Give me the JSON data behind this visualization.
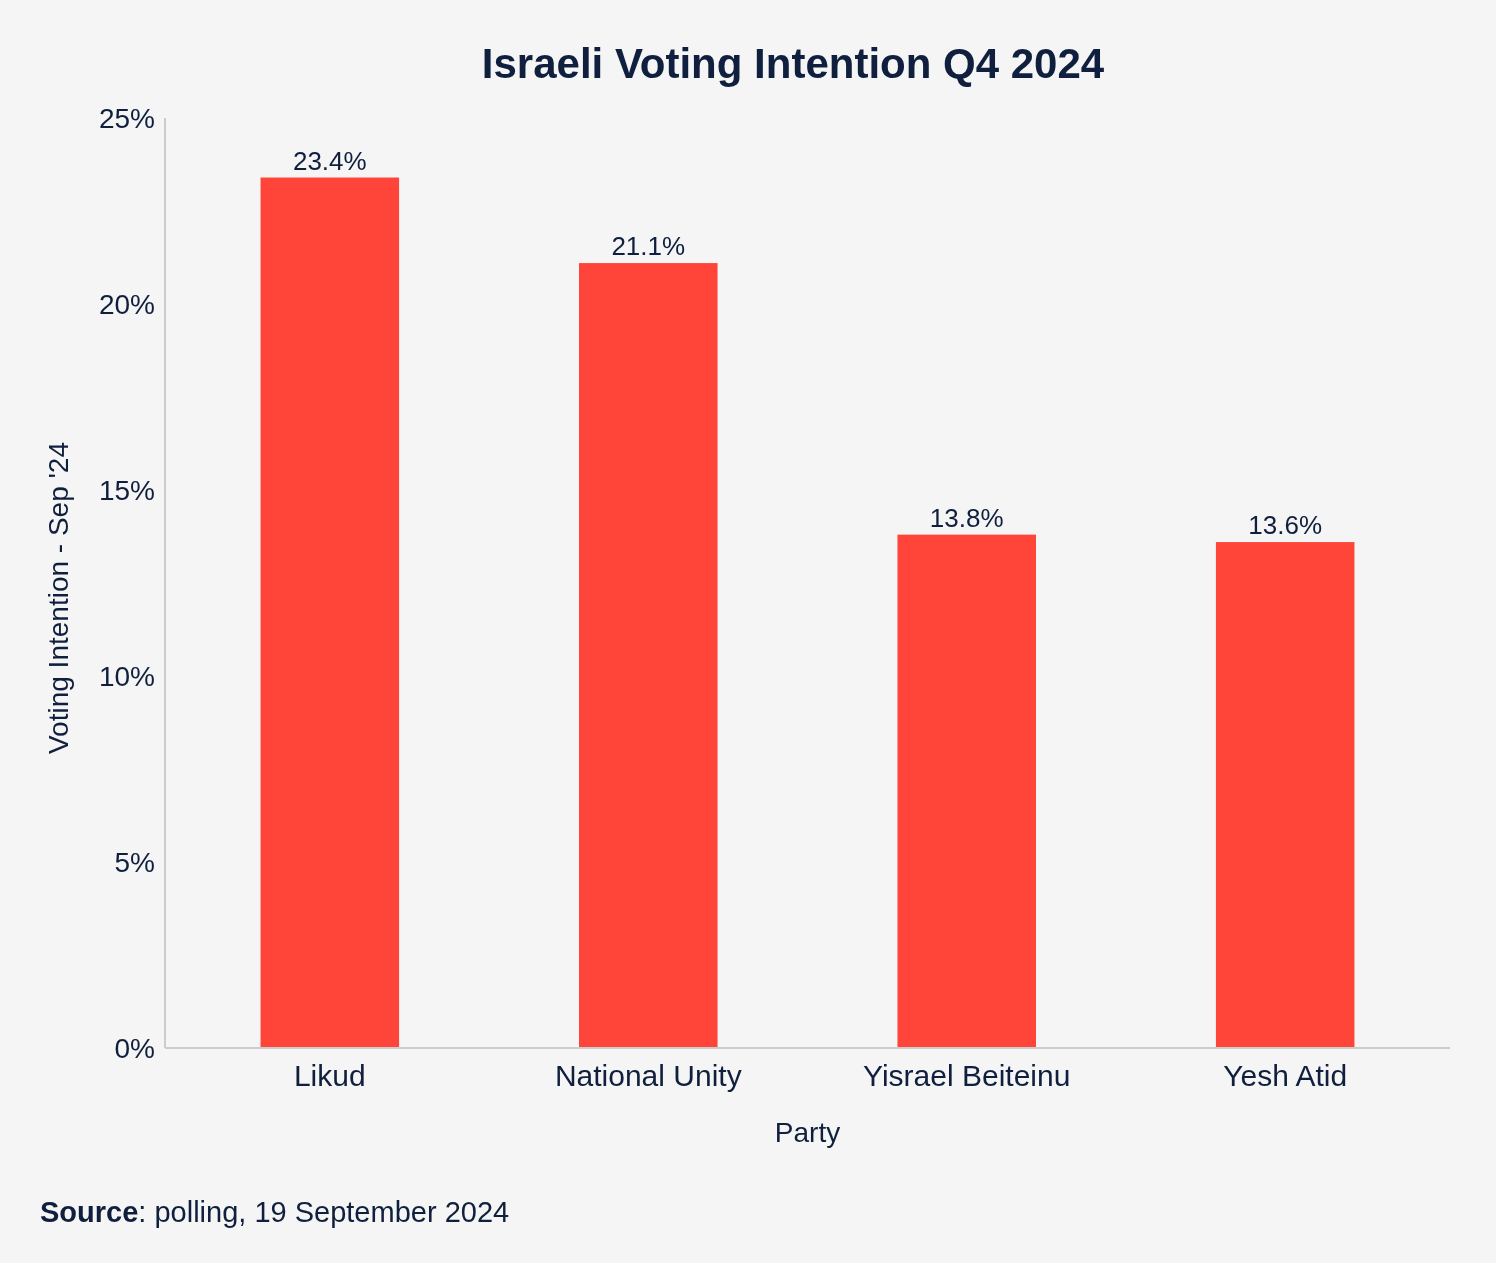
{
  "chart_data": {
    "type": "bar",
    "title": "Israeli Voting Intention Q4 2024",
    "xlabel": "Party",
    "ylabel": "Voting Intention - Sep '24",
    "categories": [
      "Likud",
      "National Unity",
      "Yisrael Beiteinu",
      "Yesh Atid"
    ],
    "values": [
      23.4,
      21.1,
      13.8,
      13.6
    ],
    "color": "#ff4539",
    "ylim": [
      0,
      25
    ],
    "yticks": [
      {
        "value": 0,
        "label": "0%"
      },
      {
        "value": 5,
        "label": "5%"
      },
      {
        "value": 10,
        "label": "10%"
      },
      {
        "value": 15,
        "label": "15%"
      },
      {
        "value": 20,
        "label": "20%"
      },
      {
        "value": 25,
        "label": "25%"
      }
    ],
    "value_labels": [
      "23.4%",
      "21.1%",
      "13.8%",
      "13.6%"
    ],
    "grid": false,
    "annotations": [
      "Source: polling, 19 September 2024"
    ]
  }
}
